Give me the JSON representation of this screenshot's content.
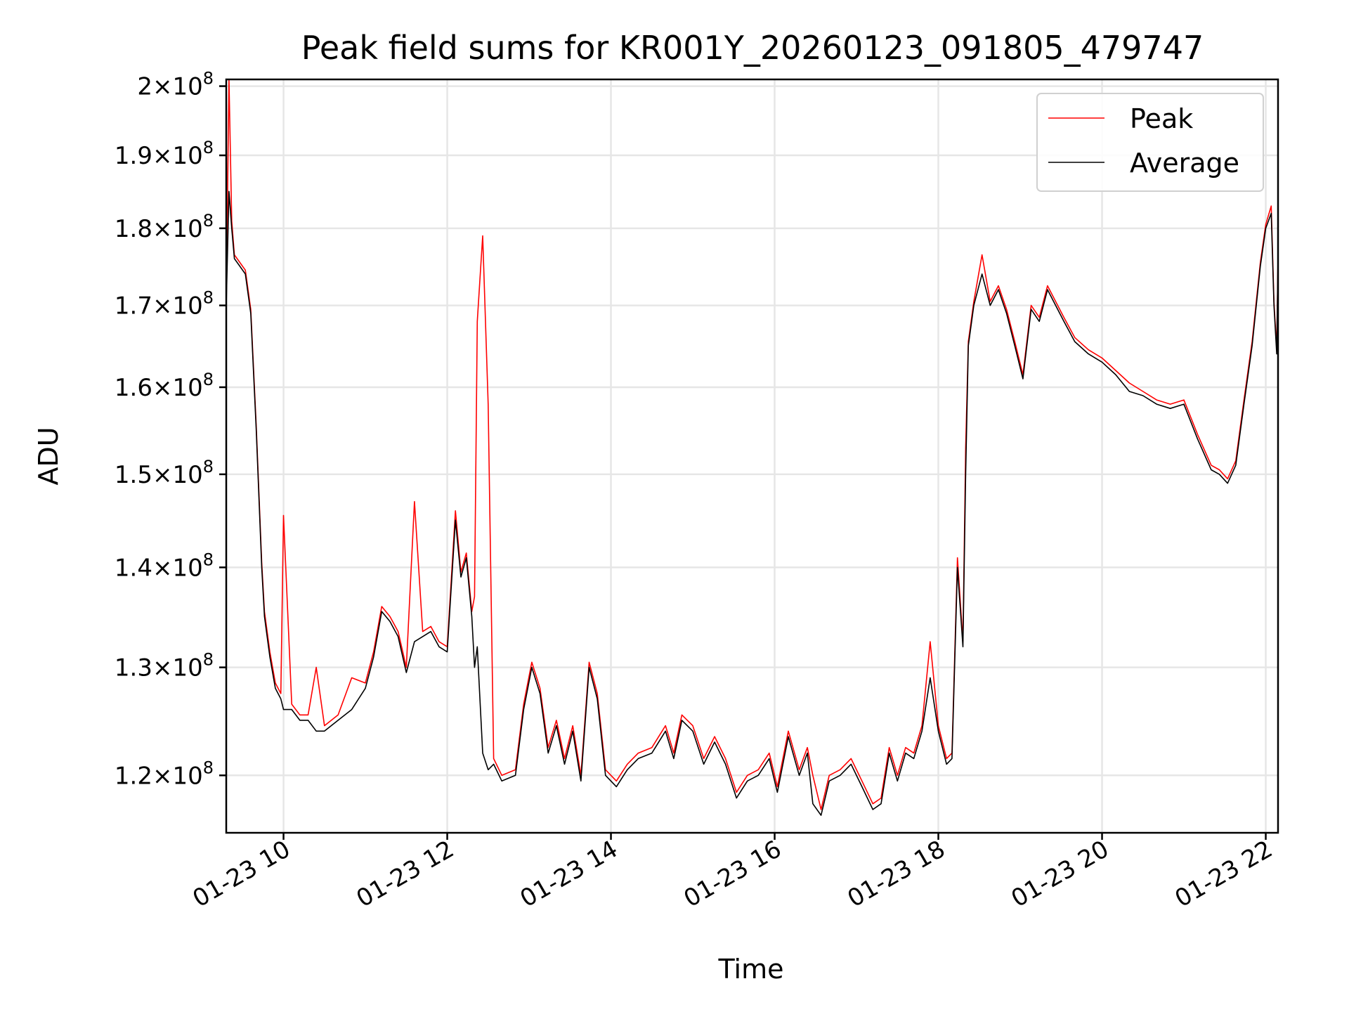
{
  "chart_data": {
    "type": "line",
    "title": "Peak field sums for KR001Y_20260123_091805_479747",
    "xlabel": "Time",
    "ylabel": "ADU",
    "yscale": "log",
    "grid": true,
    "legend": {
      "placement": "top-right"
    },
    "xlim": [
      "2026-01-23 09:18",
      "2026-01-23 22:09"
    ],
    "ylim": [
      115000000.0,
      201000000.0
    ],
    "x_ticks": [
      {
        "value": "2026-01-23 10:00",
        "label": "01-23 10"
      },
      {
        "value": "2026-01-23 12:00",
        "label": "01-23 12"
      },
      {
        "value": "2026-01-23 14:00",
        "label": "01-23 14"
      },
      {
        "value": "2026-01-23 16:00",
        "label": "01-23 16"
      },
      {
        "value": "2026-01-23 18:00",
        "label": "01-23 18"
      },
      {
        "value": "2026-01-23 20:00",
        "label": "01-23 20"
      },
      {
        "value": "2026-01-23 22:00",
        "label": "01-23 22"
      }
    ],
    "y_ticks": [
      {
        "value": 120000000.0,
        "mantissa": "1.2",
        "exponent": "8"
      },
      {
        "value": 130000000.0,
        "mantissa": "1.3",
        "exponent": "8"
      },
      {
        "value": 140000000.0,
        "mantissa": "1.4",
        "exponent": "8"
      },
      {
        "value": 150000000.0,
        "mantissa": "1.5",
        "exponent": "8"
      },
      {
        "value": 160000000.0,
        "mantissa": "1.6",
        "exponent": "8"
      },
      {
        "value": 170000000.0,
        "mantissa": "1.7",
        "exponent": "8"
      },
      {
        "value": 180000000.0,
        "mantissa": "1.8",
        "exponent": "8"
      },
      {
        "value": 190000000.0,
        "mantissa": "1.9",
        "exponent": "8"
      },
      {
        "value": 200000000.0,
        "mantissa": "2",
        "exponent": "8"
      }
    ],
    "series": [
      {
        "name": "Average",
        "color": "#000000",
        "x": [
          "2026-01-23 09:18",
          "2026-01-23 09:20",
          "2026-01-23 09:22",
          "2026-01-23 09:24",
          "2026-01-23 09:28",
          "2026-01-23 09:32",
          "2026-01-23 09:36",
          "2026-01-23 09:40",
          "2026-01-23 09:44",
          "2026-01-23 09:46",
          "2026-01-23 09:48",
          "2026-01-23 09:50",
          "2026-01-23 09:54",
          "2026-01-23 09:58",
          "2026-01-23 10:00",
          "2026-01-23 10:06",
          "2026-01-23 10:12",
          "2026-01-23 10:18",
          "2026-01-23 10:24",
          "2026-01-23 10:30",
          "2026-01-23 10:40",
          "2026-01-23 10:50",
          "2026-01-23 11:00",
          "2026-01-23 11:06",
          "2026-01-23 11:12",
          "2026-01-23 11:18",
          "2026-01-23 11:24",
          "2026-01-23 11:30",
          "2026-01-23 11:36",
          "2026-01-23 11:42",
          "2026-01-23 11:48",
          "2026-01-23 11:54",
          "2026-01-23 12:00",
          "2026-01-23 12:06",
          "2026-01-23 12:10",
          "2026-01-23 12:14",
          "2026-01-23 12:18",
          "2026-01-23 12:20",
          "2026-01-23 12:22",
          "2026-01-23 12:26",
          "2026-01-23 12:30",
          "2026-01-23 12:34",
          "2026-01-23 12:40",
          "2026-01-23 12:50",
          "2026-01-23 12:56",
          "2026-01-23 13:02",
          "2026-01-23 13:08",
          "2026-01-23 13:14",
          "2026-01-23 13:20",
          "2026-01-23 13:26",
          "2026-01-23 13:32",
          "2026-01-23 13:38",
          "2026-01-23 13:44",
          "2026-01-23 13:50",
          "2026-01-23 13:56",
          "2026-01-23 14:04",
          "2026-01-23 14:12",
          "2026-01-23 14:20",
          "2026-01-23 14:30",
          "2026-01-23 14:40",
          "2026-01-23 14:46",
          "2026-01-23 14:52",
          "2026-01-23 15:00",
          "2026-01-23 15:08",
          "2026-01-23 15:16",
          "2026-01-23 15:24",
          "2026-01-23 15:32",
          "2026-01-23 15:40",
          "2026-01-23 15:48",
          "2026-01-23 15:56",
          "2026-01-23 16:02",
          "2026-01-23 16:10",
          "2026-01-23 16:18",
          "2026-01-23 16:24",
          "2026-01-23 16:28",
          "2026-01-23 16:34",
          "2026-01-23 16:40",
          "2026-01-23 16:48",
          "2026-01-23 16:56",
          "2026-01-23 17:04",
          "2026-01-23 17:12",
          "2026-01-23 17:18",
          "2026-01-23 17:24",
          "2026-01-23 17:30",
          "2026-01-23 17:36",
          "2026-01-23 17:42",
          "2026-01-23 17:48",
          "2026-01-23 17:54",
          "2026-01-23 18:00",
          "2026-01-23 18:06",
          "2026-01-23 18:10",
          "2026-01-23 18:14",
          "2026-01-23 18:18",
          "2026-01-23 18:20",
          "2026-01-23 18:22",
          "2026-01-23 18:26",
          "2026-01-23 18:32",
          "2026-01-23 18:38",
          "2026-01-23 18:44",
          "2026-01-23 18:50",
          "2026-01-23 18:56",
          "2026-01-23 19:02",
          "2026-01-23 19:08",
          "2026-01-23 19:14",
          "2026-01-23 19:20",
          "2026-01-23 19:26",
          "2026-01-23 19:32",
          "2026-01-23 19:40",
          "2026-01-23 19:50",
          "2026-01-23 20:00",
          "2026-01-23 20:10",
          "2026-01-23 20:20",
          "2026-01-23 20:30",
          "2026-01-23 20:40",
          "2026-01-23 20:50",
          "2026-01-23 21:00",
          "2026-01-23 21:10",
          "2026-01-23 21:20",
          "2026-01-23 21:26",
          "2026-01-23 21:32",
          "2026-01-23 21:38",
          "2026-01-23 21:44",
          "2026-01-23 21:50",
          "2026-01-23 21:56",
          "2026-01-23 22:00",
          "2026-01-23 22:04",
          "2026-01-23 22:06",
          "2026-01-23 22:08",
          "2026-01-23 22:09"
        ],
        "y": [
          170000000.0,
          185000000.0,
          180000000.0,
          176000000.0,
          175000000.0,
          174000000.0,
          169000000.0,
          155000000.0,
          140000000.0,
          135000000.0,
          133000000.0,
          131000000.0,
          128000000.0,
          127000000.0,
          126000000.0,
          126000000.0,
          125000000.0,
          125000000.0,
          124000000.0,
          124000000.0,
          125000000.0,
          126000000.0,
          128000000.0,
          131000000.0,
          135500000.0,
          134500000.0,
          133000000.0,
          129500000.0,
          132500000.0,
          133000000.0,
          133500000.0,
          132000000.0,
          131500000.0,
          145000000.0,
          139000000.0,
          141000000.0,
          135000000.0,
          130000000.0,
          132000000.0,
          122000000.0,
          120500000.0,
          121000000.0,
          119500000.0,
          120000000.0,
          126000000.0,
          130000000.0,
          127500000.0,
          122000000.0,
          124500000.0,
          121000000.0,
          124000000.0,
          119500000.0,
          130000000.0,
          127000000.0,
          120000000.0,
          119000000.0,
          120500000.0,
          121500000.0,
          122000000.0,
          124000000.0,
          121500000.0,
          125000000.0,
          124000000.0,
          121000000.0,
          123000000.0,
          121000000.0,
          118000000.0,
          119500000.0,
          120000000.0,
          121500000.0,
          118500000.0,
          123500000.0,
          120000000.0,
          122000000.0,
          117500000.0,
          116500000.0,
          119500000.0,
          120000000.0,
          121000000.0,
          119000000.0,
          117000000.0,
          117500000.0,
          122000000.0,
          119500000.0,
          122000000.0,
          121500000.0,
          124000000.0,
          129000000.0,
          124000000.0,
          121000000.0,
          121500000.0,
          140000000.0,
          132000000.0,
          150000000.0,
          165000000.0,
          170000000.0,
          174000000.0,
          170000000.0,
          172000000.0,
          169000000.0,
          165000000.0,
          161000000.0,
          169500000.0,
          168000000.0,
          172000000.0,
          170000000.0,
          168000000.0,
          165500000.0,
          164000000.0,
          163000000.0,
          161500000.0,
          159500000.0,
          159000000.0,
          158000000.0,
          157500000.0,
          158000000.0,
          154000000.0,
          150500000.0,
          150000000.0,
          149000000.0,
          151000000.0,
          158000000.0,
          165000000.0,
          175000000.0,
          180000000.0,
          182000000.0,
          170000000.0,
          164000000.0,
          176000000.0
        ]
      },
      {
        "name": "Peak",
        "color": "#ff0000",
        "x": [
          "2026-01-23 09:18",
          "2026-01-23 09:20",
          "2026-01-23 09:22",
          "2026-01-23 09:24",
          "2026-01-23 09:28",
          "2026-01-23 09:32",
          "2026-01-23 09:36",
          "2026-01-23 09:40",
          "2026-01-23 09:44",
          "2026-01-23 09:46",
          "2026-01-23 09:48",
          "2026-01-23 09:50",
          "2026-01-23 09:54",
          "2026-01-23 09:58",
          "2026-01-23 10:00",
          "2026-01-23 10:06",
          "2026-01-23 10:12",
          "2026-01-23 10:18",
          "2026-01-23 10:24",
          "2026-01-23 10:30",
          "2026-01-23 10:40",
          "2026-01-23 10:50",
          "2026-01-23 11:00",
          "2026-01-23 11:06",
          "2026-01-23 11:12",
          "2026-01-23 11:18",
          "2026-01-23 11:24",
          "2026-01-23 11:30",
          "2026-01-23 11:36",
          "2026-01-23 11:42",
          "2026-01-23 11:48",
          "2026-01-23 11:54",
          "2026-01-23 12:00",
          "2026-01-23 12:06",
          "2026-01-23 12:10",
          "2026-01-23 12:14",
          "2026-01-23 12:18",
          "2026-01-23 12:20",
          "2026-01-23 12:22",
          "2026-01-23 12:26",
          "2026-01-23 12:30",
          "2026-01-23 12:34",
          "2026-01-23 12:40",
          "2026-01-23 12:50",
          "2026-01-23 12:56",
          "2026-01-23 13:02",
          "2026-01-23 13:08",
          "2026-01-23 13:14",
          "2026-01-23 13:20",
          "2026-01-23 13:26",
          "2026-01-23 13:32",
          "2026-01-23 13:38",
          "2026-01-23 13:44",
          "2026-01-23 13:50",
          "2026-01-23 13:56",
          "2026-01-23 14:04",
          "2026-01-23 14:12",
          "2026-01-23 14:20",
          "2026-01-23 14:30",
          "2026-01-23 14:40",
          "2026-01-23 14:46",
          "2026-01-23 14:52",
          "2026-01-23 15:00",
          "2026-01-23 15:08",
          "2026-01-23 15:16",
          "2026-01-23 15:24",
          "2026-01-23 15:32",
          "2026-01-23 15:40",
          "2026-01-23 15:48",
          "2026-01-23 15:56",
          "2026-01-23 16:02",
          "2026-01-23 16:10",
          "2026-01-23 16:18",
          "2026-01-23 16:24",
          "2026-01-23 16:28",
          "2026-01-23 16:34",
          "2026-01-23 16:40",
          "2026-01-23 16:48",
          "2026-01-23 16:56",
          "2026-01-23 17:04",
          "2026-01-23 17:12",
          "2026-01-23 17:18",
          "2026-01-23 17:24",
          "2026-01-23 17:30",
          "2026-01-23 17:36",
          "2026-01-23 17:42",
          "2026-01-23 17:48",
          "2026-01-23 17:54",
          "2026-01-23 18:00",
          "2026-01-23 18:06",
          "2026-01-23 18:10",
          "2026-01-23 18:14",
          "2026-01-23 18:18",
          "2026-01-23 18:20",
          "2026-01-23 18:22",
          "2026-01-23 18:26",
          "2026-01-23 18:32",
          "2026-01-23 18:38",
          "2026-01-23 18:44",
          "2026-01-23 18:50",
          "2026-01-23 18:56",
          "2026-01-23 19:02",
          "2026-01-23 19:08",
          "2026-01-23 19:14",
          "2026-01-23 19:20",
          "2026-01-23 19:26",
          "2026-01-23 19:32",
          "2026-01-23 19:40",
          "2026-01-23 19:50",
          "2026-01-23 20:00",
          "2026-01-23 20:10",
          "2026-01-23 20:20",
          "2026-01-23 20:30",
          "2026-01-23 20:40",
          "2026-01-23 20:50",
          "2026-01-23 21:00",
          "2026-01-23 21:10",
          "2026-01-23 21:20",
          "2026-01-23 21:26",
          "2026-01-23 21:32",
          "2026-01-23 21:38",
          "2026-01-23 21:44",
          "2026-01-23 21:50",
          "2026-01-23 21:56",
          "2026-01-23 22:00",
          "2026-01-23 22:04",
          "2026-01-23 22:06",
          "2026-01-23 22:08",
          "2026-01-23 22:09"
        ],
        "y": [
          170000000.0,
          201000000.0,
          181000000.0,
          176500000.0,
          175500000.0,
          174500000.0,
          169500000.0,
          155500000.0,
          140500000.0,
          135500000.0,
          133500000.0,
          131500000.0,
          128500000.0,
          127500000.0,
          145500000.0,
          126500000.0,
          125500000.0,
          125500000.0,
          130000000.0,
          124500000.0,
          125500000.0,
          129000000.0,
          128500000.0,
          131500000.0,
          136000000.0,
          135000000.0,
          133500000.0,
          130000000.0,
          147000000.0,
          133500000.0,
          134000000.0,
          132500000.0,
          132000000.0,
          146000000.0,
          139500000.0,
          141500000.0,
          135500000.0,
          137000000.0,
          168000000.0,
          179000000.0,
          158000000.0,
          121500000.0,
          120000000.0,
          120500000.0,
          126500000.0,
          130500000.0,
          128000000.0,
          122500000.0,
          125000000.0,
          121500000.0,
          124500000.0,
          120000000.0,
          130500000.0,
          127500000.0,
          120500000.0,
          119500000.0,
          121000000.0,
          122000000.0,
          122500000.0,
          124500000.0,
          122000000.0,
          125500000.0,
          124500000.0,
          121500000.0,
          123500000.0,
          121500000.0,
          118500000.0,
          120000000.0,
          120500000.0,
          122000000.0,
          119000000.0,
          124000000.0,
          120500000.0,
          122500000.0,
          120000000.0,
          117000000.0,
          120000000.0,
          120500000.0,
          121500000.0,
          119500000.0,
          117500000.0,
          118000000.0,
          122500000.0,
          120000000.0,
          122500000.0,
          122000000.0,
          124500000.0,
          132500000.0,
          124500000.0,
          121500000.0,
          122000000.0,
          141000000.0,
          132500000.0,
          153000000.0,
          165500000.0,
          170500000.0,
          176500000.0,
          170500000.0,
          172500000.0,
          169500000.0,
          165500000.0,
          161500000.0,
          170000000.0,
          168500000.0,
          172500000.0,
          170500000.0,
          168500000.0,
          166000000.0,
          164500000.0,
          163500000.0,
          162000000.0,
          160500000.0,
          159500000.0,
          158500000.0,
          158000000.0,
          158500000.0,
          154500000.0,
          151000000.0,
          150500000.0,
          149500000.0,
          151500000.0,
          158500000.0,
          165500000.0,
          175500000.0,
          180500000.0,
          183000000.0,
          170500000.0,
          164500000.0,
          176500000.0
        ]
      }
    ]
  }
}
